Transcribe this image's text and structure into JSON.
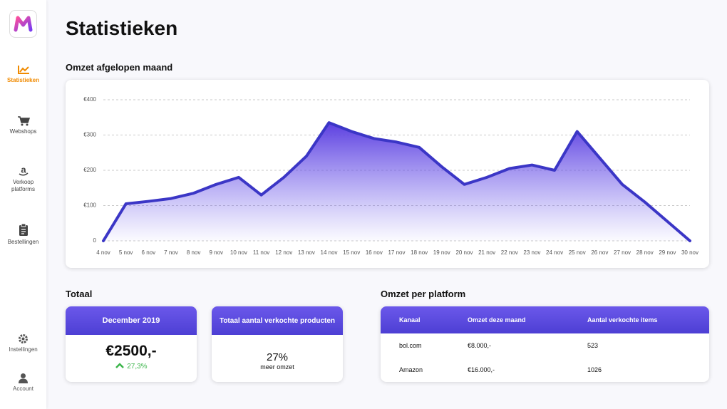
{
  "sidebar": {
    "nav": [
      "Statistieken",
      "Webshops",
      "Verkoop platforms",
      "Bestellingen"
    ],
    "bottom_nav": [
      "Instellingen",
      "Account"
    ]
  },
  "header": {
    "title": "Statistieken"
  },
  "chart_data": {
    "type": "line",
    "title": "Omzet afgelopen maand",
    "categories": [
      "4 nov",
      "5 nov",
      "6 nov",
      "7 nov",
      "8 nov",
      "9 nov",
      "10 nov",
      "11 nov",
      "12 nov",
      "13 nov",
      "14 nov",
      "15 nov",
      "16 nov",
      "17 nov",
      "18 nov",
      "19 nov",
      "20 nov",
      "21 nov",
      "22 nov",
      "23 nov",
      "24 nov",
      "25 nov",
      "26 nov",
      "27 nov",
      "28 nov",
      "29 nov",
      "30 nov"
    ],
    "values": [
      0,
      105,
      112,
      120,
      135,
      160,
      180,
      130,
      180,
      240,
      335,
      310,
      290,
      280,
      265,
      210,
      160,
      180,
      205,
      215,
      200,
      310,
      235,
      160,
      110,
      55,
      0
    ],
    "color": "#3b36c6",
    "ylim": [
      0,
      400
    ],
    "yticks": [
      0,
      {
        "value": 100,
        "label": "€100"
      },
      {
        "value": 200,
        "label": "€200"
      },
      {
        "value": 300,
        "label": "€300"
      },
      {
        "value": 400,
        "label": "€400"
      }
    ],
    "grid": true
  },
  "totals": {
    "title": "Totaal",
    "month_card": {
      "header": "December 2019",
      "amount": "€2500,-",
      "change": "27,3%"
    },
    "products_card": {
      "header": "Totaal aantal verkochte producten",
      "value": "27%",
      "caption": "meer omzet"
    }
  },
  "platform": {
    "title": "Omzet per platform",
    "table": {
      "columns": [
        "Kanaal",
        "Omzet deze maand",
        "Aantal verkochte items"
      ],
      "rows": [
        [
          "bol.com",
          "€8.000,-",
          "523"
        ],
        [
          "Amazon",
          "€16.000,-",
          "1026"
        ]
      ]
    }
  }
}
